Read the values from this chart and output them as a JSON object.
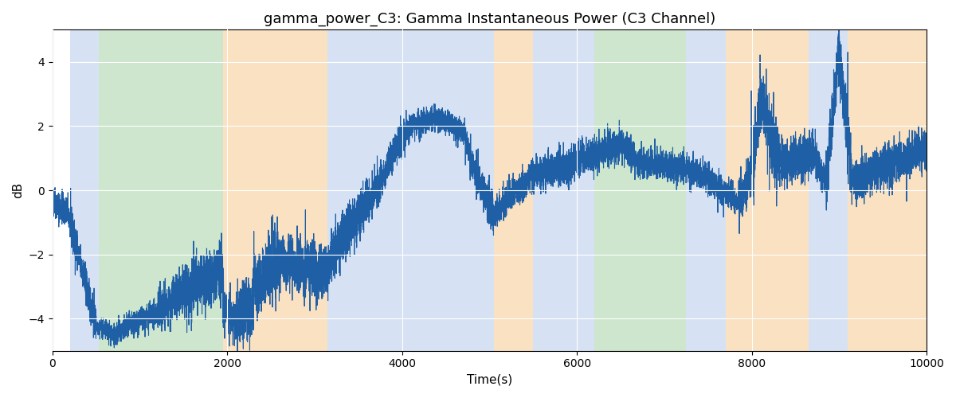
{
  "title": "gamma_power_C3: Gamma Instantaneous Power (C3 Channel)",
  "xlabel": "Time(s)",
  "ylabel": "dB",
  "xlim": [
    0,
    10000
  ],
  "ylim": [
    -5,
    5
  ],
  "background_regions": [
    {
      "xmin": 200,
      "xmax": 530,
      "color": "#aec6e8",
      "alpha": 0.5
    },
    {
      "xmin": 530,
      "xmax": 1950,
      "color": "#90c990",
      "alpha": 0.45
    },
    {
      "xmin": 1950,
      "xmax": 3150,
      "color": "#f5c990",
      "alpha": 0.55
    },
    {
      "xmin": 3150,
      "xmax": 3550,
      "color": "#aec6e8",
      "alpha": 0.5
    },
    {
      "xmin": 3550,
      "xmax": 5050,
      "color": "#aec6e8",
      "alpha": 0.5
    },
    {
      "xmin": 5050,
      "xmax": 5500,
      "color": "#f5c990",
      "alpha": 0.55
    },
    {
      "xmin": 5500,
      "xmax": 6200,
      "color": "#aec6e8",
      "alpha": 0.5
    },
    {
      "xmin": 6200,
      "xmax": 7250,
      "color": "#90c990",
      "alpha": 0.45
    },
    {
      "xmin": 7250,
      "xmax": 7700,
      "color": "#aec6e8",
      "alpha": 0.5
    },
    {
      "xmin": 7700,
      "xmax": 8650,
      "color": "#f5c990",
      "alpha": 0.55
    },
    {
      "xmin": 8650,
      "xmax": 9100,
      "color": "#aec6e8",
      "alpha": 0.5
    },
    {
      "xmin": 9100,
      "xmax": 10000,
      "color": "#f5c990",
      "alpha": 0.55
    }
  ],
  "line_color": "#1f5fa6",
  "line_width": 0.8,
  "grid_color": "white",
  "grid_linewidth": 0.8,
  "title_fontsize": 13,
  "axis_fontsize": 11,
  "xticks": [
    0,
    2000,
    4000,
    6000,
    8000,
    10000
  ],
  "yticks": [
    -4,
    -2,
    0,
    2,
    4
  ],
  "seed": 42
}
